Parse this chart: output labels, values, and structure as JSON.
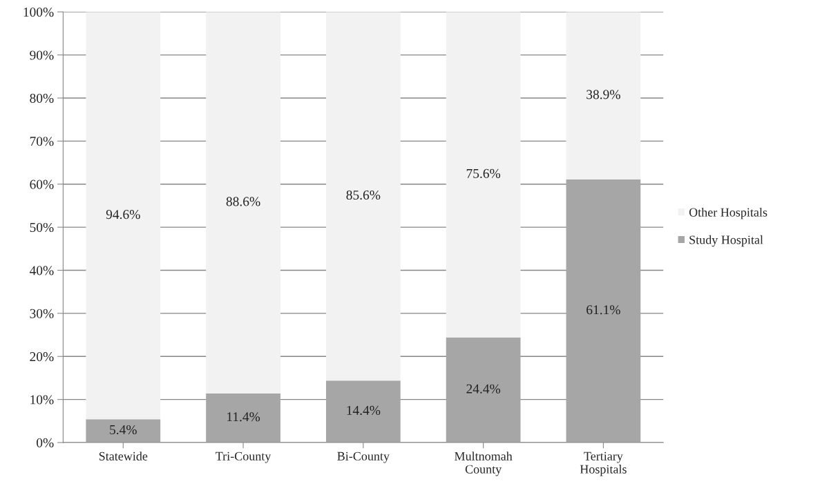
{
  "chart_data": {
    "type": "bar",
    "stacked": true,
    "categories": [
      "Statewide",
      "Tri-County",
      "Bi-County",
      "Multnomah\nCounty",
      "Tertiary\nHospitals"
    ],
    "series": [
      {
        "name": "Study Hospital",
        "color": "#a6a6a6",
        "values": [
          5.4,
          11.4,
          14.4,
          24.4,
          61.1
        ],
        "value_labels": [
          "5.4%",
          "11.4%",
          "14.4%",
          "24.4%",
          "61.1%"
        ]
      },
      {
        "name": "Other Hospitals",
        "color": "#f2f2f2",
        "values": [
          94.6,
          88.6,
          85.6,
          75.6,
          38.9
        ],
        "value_labels": [
          "94.6%",
          "88.6%",
          "85.6%",
          "75.6%",
          "38.9%"
        ]
      }
    ],
    "ylim": [
      0,
      100
    ],
    "yticks": [
      {
        "value": 0,
        "label": "0%"
      },
      {
        "value": 10,
        "label": "10%"
      },
      {
        "value": 20,
        "label": "20%"
      },
      {
        "value": 30,
        "label": "30%"
      },
      {
        "value": 40,
        "label": "40%"
      },
      {
        "value": 50,
        "label": "50%"
      },
      {
        "value": 60,
        "label": "60%"
      },
      {
        "value": 70,
        "label": "70%"
      },
      {
        "value": 80,
        "label": "80%"
      },
      {
        "value": 90,
        "label": "90%"
      },
      {
        "value": 100,
        "label": "100%"
      }
    ],
    "grid": "y",
    "legend": "right"
  }
}
